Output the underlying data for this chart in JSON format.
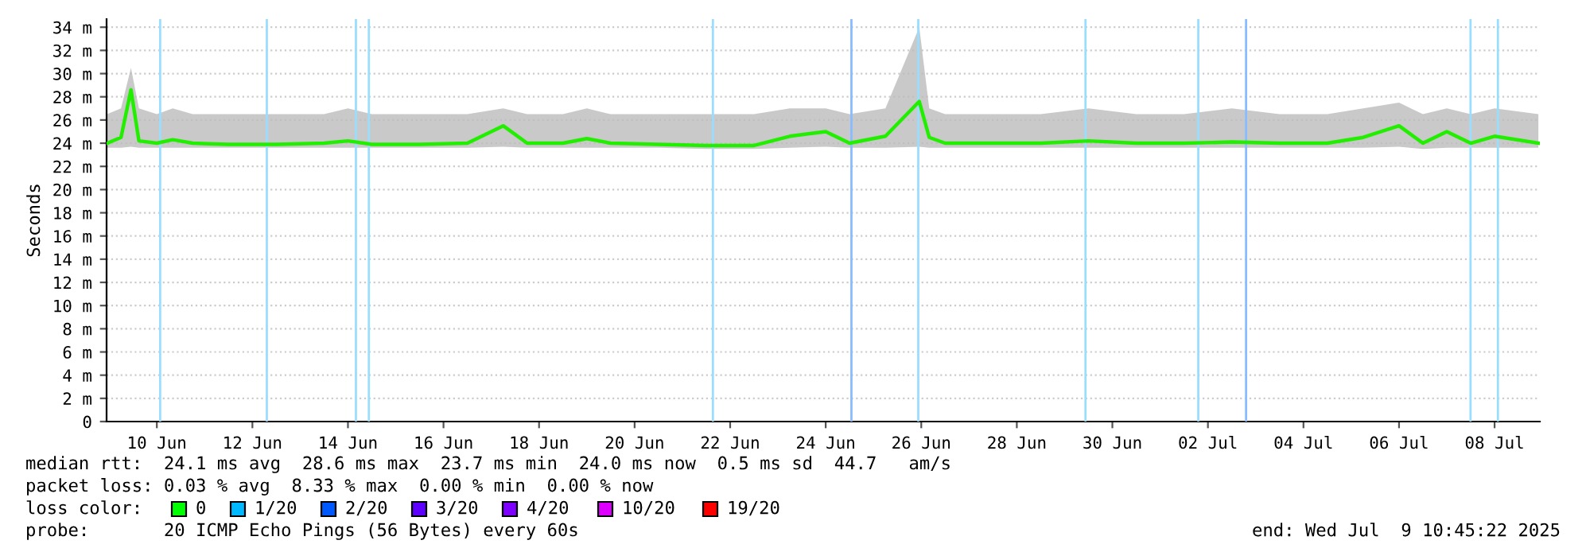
{
  "chart_data": {
    "type": "line",
    "ylabel": "Seconds",
    "xlim": [
      "2025-06-09T10:45",
      "2025-07-09T10:45"
    ],
    "xticks": [
      {
        "value": "2025-06-10T12:00",
        "label": "10 Jun"
      },
      {
        "value": "2025-06-12T12:00",
        "label": "12 Jun"
      },
      {
        "value": "2025-06-14T12:00",
        "label": "14 Jun"
      },
      {
        "value": "2025-06-16T12:00",
        "label": "16 Jun"
      },
      {
        "value": "2025-06-18T12:00",
        "label": "18 Jun"
      },
      {
        "value": "2025-06-20T12:00",
        "label": "20 Jun"
      },
      {
        "value": "2025-06-22T12:00",
        "label": "22 Jun"
      },
      {
        "value": "2025-06-24T12:00",
        "label": "24 Jun"
      },
      {
        "value": "2025-06-26T12:00",
        "label": "26 Jun"
      },
      {
        "value": "2025-06-28T12:00",
        "label": "28 Jun"
      },
      {
        "value": "2025-06-30T12:00",
        "label": "30 Jun"
      },
      {
        "value": "2025-07-02T12:00",
        "label": "02 Jul"
      },
      {
        "value": "2025-07-04T12:00",
        "label": "04 Jul"
      },
      {
        "value": "2025-07-06T12:00",
        "label": "06 Jul"
      },
      {
        "value": "2025-07-08T12:00",
        "label": "08 Jul"
      }
    ],
    "ylim": [
      0,
      34.7
    ],
    "yticks": [
      0,
      {
        "value": 2,
        "label": "2 m"
      },
      {
        "value": 4,
        "label": "4 m"
      },
      {
        "value": 6,
        "label": "6 m"
      },
      {
        "value": 8,
        "label": "8 m"
      },
      {
        "value": 10,
        "label": "10 m"
      },
      {
        "value": 12,
        "label": "12 m"
      },
      {
        "value": 14,
        "label": "14 m"
      },
      {
        "value": 16,
        "label": "16 m"
      },
      {
        "value": 18,
        "label": "18 m"
      },
      {
        "value": 20,
        "label": "20 m"
      },
      {
        "value": 22,
        "label": "22 m"
      },
      {
        "value": 24,
        "label": "24 m"
      },
      {
        "value": 26,
        "label": "26 m"
      },
      {
        "value": 28,
        "label": "28 m"
      },
      {
        "value": 30,
        "label": "30 m"
      },
      {
        "value": 32,
        "label": "32 m"
      },
      {
        "value": 34,
        "label": "34 m"
      }
    ],
    "grid": "y",
    "marker": "none",
    "line_style": "solid",
    "series": [
      {
        "color": "#22ee00",
        "x": [
          "2025-06-09T11:00",
          "2025-06-09T18:00",
          "2025-06-09T23:00",
          "2025-06-10T03:00",
          "2025-06-10T12:00",
          "2025-06-10T20:00",
          "2025-06-11T06:00",
          "2025-06-12T00:00",
          "2025-06-13T00:00",
          "2025-06-14T00:00",
          "2025-06-14T12:00",
          "2025-06-15T00:00",
          "2025-06-16T00:00",
          "2025-06-17T00:00",
          "2025-06-17T18:00",
          "2025-06-18T06:00",
          "2025-06-19T00:00",
          "2025-06-19T12:00",
          "2025-06-20T00:00",
          "2025-06-21T00:00",
          "2025-06-22T00:00",
          "2025-06-23T00:00",
          "2025-06-23T18:00",
          "2025-06-24T12:00",
          "2025-06-25T00:00",
          "2025-06-25T18:00",
          "2025-06-26T11:00",
          "2025-06-26T16:00",
          "2025-06-27T00:00",
          "2025-06-28T00:00",
          "2025-06-29T00:00",
          "2025-06-30T00:00",
          "2025-07-01T00:00",
          "2025-07-02T00:00",
          "2025-07-03T00:00",
          "2025-07-04T00:00",
          "2025-07-05T00:00",
          "2025-07-05T18:00",
          "2025-07-06T12:00",
          "2025-07-07T00:00",
          "2025-07-07T12:00",
          "2025-07-08T00:00",
          "2025-07-08T12:00",
          "2025-07-09T10:00"
        ],
        "values": [
          24.0,
          24.5,
          28.6,
          24.2,
          24.0,
          24.3,
          24.0,
          23.9,
          23.9,
          24.0,
          24.2,
          23.9,
          23.9,
          24.0,
          25.5,
          24.0,
          24.0,
          24.4,
          24.0,
          23.9,
          23.8,
          23.8,
          24.6,
          25.0,
          24.0,
          24.6,
          27.6,
          24.5,
          24.0,
          24.0,
          24.0,
          24.2,
          24.0,
          24.0,
          24.1,
          24.0,
          24.0,
          24.5,
          25.5,
          24.0,
          25.0,
          24.0,
          24.6,
          24.0
        ],
        "lower": [
          23.6,
          23.6,
          23.7,
          23.6,
          23.6,
          23.6,
          23.6,
          23.6,
          23.6,
          23.6,
          23.6,
          23.6,
          23.6,
          23.6,
          23.7,
          23.6,
          23.6,
          23.6,
          23.6,
          23.6,
          23.5,
          23.5,
          23.6,
          23.7,
          23.6,
          23.6,
          23.7,
          23.6,
          23.6,
          23.6,
          23.6,
          23.6,
          23.6,
          23.6,
          23.6,
          23.6,
          23.6,
          23.6,
          23.7,
          23.5,
          23.6,
          23.6,
          23.6,
          23.6
        ],
        "upper": [
          26.5,
          27.0,
          30.5,
          27.0,
          26.5,
          27.0,
          26.5,
          26.5,
          26.5,
          26.5,
          27.0,
          26.5,
          26.5,
          26.5,
          27.0,
          26.5,
          26.5,
          27.0,
          26.5,
          26.5,
          26.5,
          26.5,
          27.0,
          27.0,
          26.5,
          27.0,
          34.0,
          27.0,
          26.5,
          26.5,
          26.5,
          27.0,
          26.5,
          26.5,
          27.0,
          26.5,
          26.5,
          27.0,
          27.5,
          26.5,
          27.0,
          26.5,
          27.0,
          26.5
        ]
      }
    ],
    "ref_lines": [
      {
        "axis": "x",
        "value": "2025-06-10T13:40",
        "color": "#99ddff"
      },
      {
        "axis": "x",
        "value": "2025-06-12T19:15",
        "color": "#99ddff"
      },
      {
        "axis": "x",
        "value": "2025-06-14T16:00",
        "color": "#99ddff"
      },
      {
        "axis": "x",
        "value": "2025-06-14T22:30",
        "color": "#99ddff"
      },
      {
        "axis": "x",
        "value": "2025-06-22T03:20",
        "color": "#99ddff"
      },
      {
        "axis": "x",
        "value": "2025-06-25T00:55",
        "color": "#88bbff"
      },
      {
        "axis": "x",
        "value": "2025-06-26T10:30",
        "color": "#99ddff"
      },
      {
        "axis": "x",
        "value": "2025-06-29T22:30",
        "color": "#99ddff"
      },
      {
        "axis": "x",
        "value": "2025-07-02T07:10",
        "color": "#99ddff"
      },
      {
        "axis": "x",
        "value": "2025-07-03T07:10",
        "color": "#88bbff"
      },
      {
        "axis": "x",
        "value": "2025-07-07T23:55",
        "color": "#99ddff"
      },
      {
        "axis": "x",
        "value": "2025-07-08T13:40",
        "color": "#99ddff"
      }
    ],
    "annotations": [
      "median rtt:  24.1 ms avg  28.6 ms max  23.7 ms min  24.0 ms now  0.5 ms sd  44.7   am/s",
      "packet loss: 0.03 % avg  8.33 % max  0.00 % min  0.00 % now",
      "loss color:",
      "0",
      "1/20",
      "2/20",
      "3/20",
      "4/20",
      "10/20",
      "19/20",
      "probe:       20 ICMP Echo Pings (56 Bytes) every 60s",
      "end: Wed Jul  9 10:45:22 2025"
    ]
  }
}
